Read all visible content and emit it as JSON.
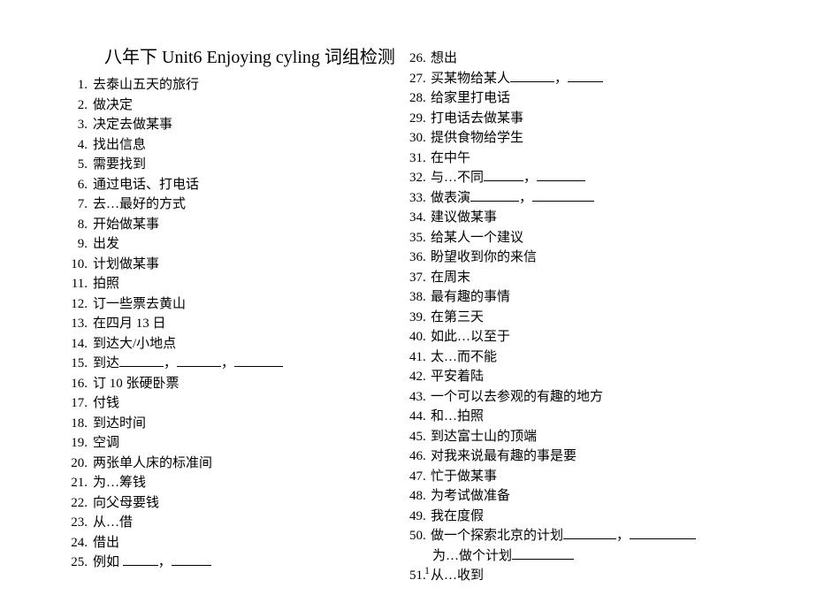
{
  "title": "八年下 Unit6 Enjoying cyling 词组检测",
  "left": [
    {
      "n": "1.",
      "t": "去泰山五天的旅行"
    },
    {
      "n": "2.",
      "t": "做决定"
    },
    {
      "n": "3.",
      "t": "决定去做某事"
    },
    {
      "n": "4.",
      "t": "找出信息"
    },
    {
      "n": "5.",
      "t": "需要找到"
    },
    {
      "n": "6.",
      "t": "通过电话、打电话"
    },
    {
      "n": "7.",
      "t": "去…最好的方式"
    },
    {
      "n": "8.",
      "t": "开始做某事"
    },
    {
      "n": "9.",
      "t": "出发"
    },
    {
      "n": "10.",
      "t": "计划做某事"
    },
    {
      "n": "11.",
      "t": "拍照"
    },
    {
      "n": "12.",
      "t": "订一些票去黄山"
    },
    {
      "n": "13.",
      "t": "在四月 13 日"
    },
    {
      "n": "14.",
      "t": "到达大/小地点"
    },
    {
      "n": "15.",
      "t": "到达",
      "blanks": [
        50,
        50,
        55
      ]
    },
    {
      "n": "16.",
      "t": "订 10 张硬卧票"
    },
    {
      "n": "17.",
      "t": "付钱"
    },
    {
      "n": "18.",
      "t": "到达时间"
    },
    {
      "n": "19.",
      "t": "空调"
    },
    {
      "n": "20.",
      "t": "两张单人床的标准间"
    },
    {
      "n": "21.",
      "t": "为…筹钱"
    },
    {
      "n": "22.",
      "t": "向父母要钱"
    },
    {
      "n": "23.",
      "t": "从…借"
    },
    {
      "n": "24.",
      "t": "借出"
    },
    {
      "n": "25.",
      "t": "例如 ",
      "blanks": [
        40,
        45
      ]
    }
  ],
  "right": [
    {
      "n": "26.",
      "t": "想出"
    },
    {
      "n": "27.",
      "t": "买某物给某人",
      "blanks": [
        50,
        40
      ]
    },
    {
      "n": "28.",
      "t": "给家里打电话"
    },
    {
      "n": "29.",
      "t": "打电话去做某事"
    },
    {
      "n": "30.",
      "t": "提供食物给学生"
    },
    {
      "n": "31.",
      "t": "在中午"
    },
    {
      "n": "32.",
      "t": "与…不同",
      "blanks": [
        45,
        55
      ]
    },
    {
      "n": "33.",
      "t": "做表演",
      "blanks": [
        55,
        70
      ]
    },
    {
      "n": "34.",
      "t": "建议做某事"
    },
    {
      "n": "35.",
      "t": "给某人一个建议"
    },
    {
      "n": "36.",
      "t": "盼望收到你的来信"
    },
    {
      "n": "37.",
      "t": "在周末"
    },
    {
      "n": "38.",
      "t": "最有趣的事情"
    },
    {
      "n": "39.",
      "t": "在第三天"
    },
    {
      "n": "40.",
      "t": "如此…以至于"
    },
    {
      "n": "41.",
      "t": "太…而不能"
    },
    {
      "n": "42.",
      "t": "平安着陆"
    },
    {
      "n": "43.",
      "t": "一个可以去参观的有趣的地方"
    },
    {
      "n": "44.",
      "t": "和…拍照"
    },
    {
      "n": "45.",
      "t": "到达富士山的顶端"
    },
    {
      "n": "46.",
      "t": "对我来说最有趣的事是要"
    },
    {
      "n": "47.",
      "t": "忙于做某事"
    },
    {
      "n": "48.",
      "t": "为考试做准备"
    },
    {
      "n": "49.",
      "t": "我在度假"
    },
    {
      "n": "50.",
      "t": "做一个探索北京的计划",
      "blanks": [
        60,
        75
      ],
      "cont": {
        "t": "为…做个计划",
        "blanks": [
          70
        ]
      }
    },
    {
      "n": "51.",
      "t": "从…收到"
    }
  ],
  "page_num": "1"
}
